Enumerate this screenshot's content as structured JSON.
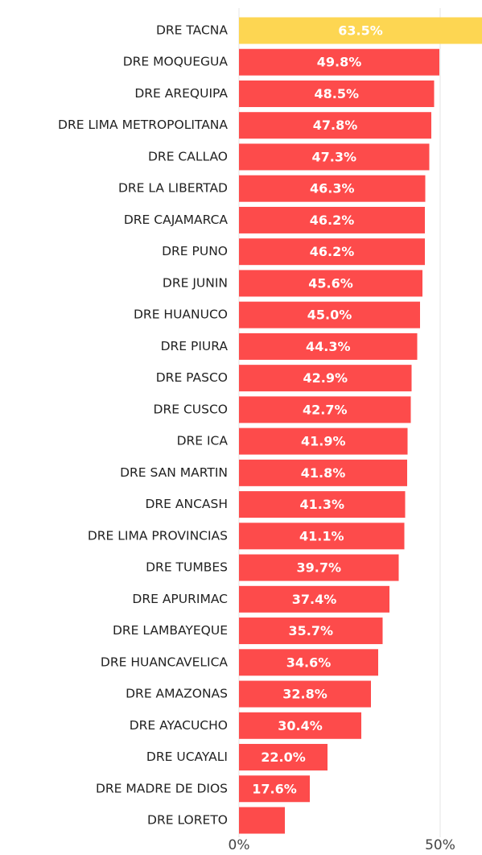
{
  "chart_data": {
    "type": "barh",
    "categories": [
      "DRE TACNA",
      "DRE MOQUEGUA",
      "DRE AREQUIPA",
      "DRE LIMA METROPOLITANA",
      "DRE CALLAO",
      "DRE LA LIBERTAD",
      "DRE CAJAMARCA",
      "DRE PUNO",
      "DRE JUNIN",
      "DRE HUANUCO",
      "DRE PIURA",
      "DRE PASCO",
      "DRE CUSCO",
      "DRE ICA",
      "DRE SAN MARTIN",
      "DRE ANCASH",
      "DRE LIMA PROVINCIAS",
      "DRE TUMBES",
      "DRE APURIMAC",
      "DRE LAMBAYEQUE",
      "DRE HUANCAVELICA",
      "DRE AMAZONAS",
      "DRE AYACUCHO",
      "DRE UCAYALI",
      "DRE MADRE DE DIOS",
      "DRE LORETO"
    ],
    "values": [
      63.5,
      49.8,
      48.5,
      47.8,
      47.3,
      46.3,
      46.2,
      46.2,
      45.6,
      45.0,
      44.3,
      42.9,
      42.7,
      41.9,
      41.8,
      41.3,
      41.1,
      39.7,
      37.4,
      35.7,
      34.6,
      32.8,
      30.4,
      22.0,
      17.6,
      11.4
    ],
    "value_labels": [
      "63.5%",
      "49.8%",
      "48.5%",
      "47.8%",
      "47.3%",
      "46.3%",
      "46.2%",
      "46.2%",
      "45.6%",
      "45.0%",
      "44.3%",
      "42.9%",
      "42.7%",
      "41.9%",
      "41.8%",
      "41.3%",
      "41.1%",
      "39.7%",
      "37.4%",
      "35.7%",
      "34.6%",
      "32.8%",
      "30.4%",
      "22.0%",
      "17.6%",
      null
    ],
    "colors": [
      "#fdd652",
      "#fd4b4b",
      "#fd4b4b",
      "#fd4b4b",
      "#fd4b4b",
      "#fd4b4b",
      "#fd4b4b",
      "#fd4b4b",
      "#fd4b4b",
      "#fd4b4b",
      "#fd4b4b",
      "#fd4b4b",
      "#fd4b4b",
      "#fd4b4b",
      "#fd4b4b",
      "#fd4b4b",
      "#fd4b4b",
      "#fd4b4b",
      "#fd4b4b",
      "#fd4b4b",
      "#fd4b4b",
      "#fd4b4b",
      "#fd4b4b",
      "#fd4b4b",
      "#fd4b4b",
      "#fd4b4b"
    ],
    "xlim": [
      0,
      60.4
    ],
    "xticks": [
      {
        "value": 0,
        "label": "0%"
      },
      {
        "value": 50,
        "label": "50%"
      }
    ],
    "grid": true
  }
}
